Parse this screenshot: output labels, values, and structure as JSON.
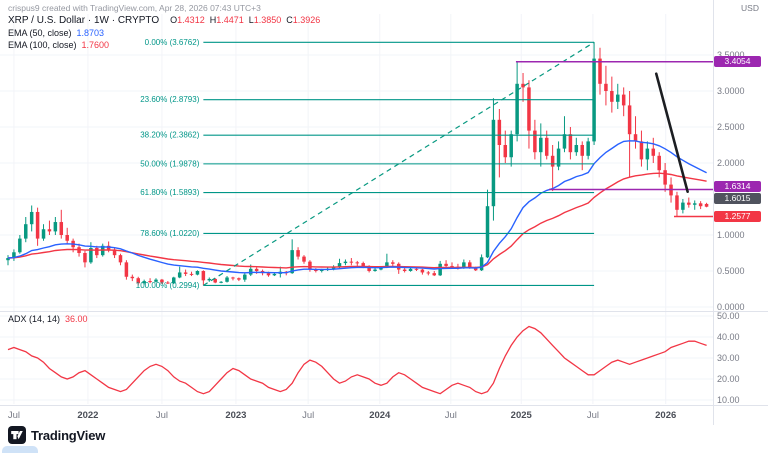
{
  "attribution": "crispus9 created with TradingView.com, Apr 28, 2026 07:43 UTC+3",
  "currency": "USD",
  "header": {
    "symbol_title": "XRP / U.S. Dollar · 1W · CRYPTO",
    "ohlc": [
      {
        "k": "O",
        "v": "1.4312"
      },
      {
        "k": "H",
        "v": "1.4471"
      },
      {
        "k": "L",
        "v": "1.3850"
      },
      {
        "k": "C",
        "v": "1.3926"
      }
    ]
  },
  "indicators": [
    {
      "label": "EMA (50, close)",
      "value": "1.8703",
      "color": "#2962ff",
      "render_period": 25
    },
    {
      "label": "EMA (100, close)",
      "value": "1.7600",
      "color": "#f23645",
      "render_period": 50
    }
  ],
  "adx_legend": {
    "label": "ADX (14, 14)",
    "value": "36.00",
    "color": "#f23645"
  },
  "axes": {
    "price_ticks": [
      {
        "label": "3.5000",
        "value": 3.5
      },
      {
        "label": "3.0000",
        "value": 3.0
      },
      {
        "label": "2.5000",
        "value": 2.5
      },
      {
        "label": "2.0000",
        "value": 2.0
      },
      {
        "label": "1.5000",
        "value": 1.5
      },
      {
        "label": "1.0000",
        "value": 1.0
      },
      {
        "label": "0.5000",
        "value": 0.5
      },
      {
        "label": "0.0000",
        "value": 0.0
      }
    ],
    "adx_ticks": [
      {
        "label": "50.00",
        "value": 50
      },
      {
        "label": "40.00",
        "value": 40
      },
      {
        "label": "30.00",
        "value": 30
      },
      {
        "label": "20.00",
        "value": 20
      },
      {
        "label": "10.00",
        "value": 10
      }
    ],
    "time_ticks": [
      {
        "label": "Jul",
        "index": 1.0,
        "major": false
      },
      {
        "label": "2022",
        "index": 13.5,
        "major": true
      },
      {
        "label": "Jul",
        "index": 26.0,
        "major": false
      },
      {
        "label": "2023",
        "index": 38.5,
        "major": true
      },
      {
        "label": "Jul",
        "index": 50.7,
        "major": false
      },
      {
        "label": "2024",
        "index": 62.8,
        "major": true
      },
      {
        "label": "Jul",
        "index": 74.8,
        "major": false
      },
      {
        "label": "2025",
        "index": 86.7,
        "major": true
      },
      {
        "label": "Jul",
        "index": 98.8,
        "major": false
      },
      {
        "label": "2026",
        "index": 111.1,
        "major": true
      }
    ]
  },
  "price_labels": [
    {
      "text": "3.4054",
      "price": 3.4054,
      "bg": "#9c27b0",
      "dy": 0
    },
    {
      "text": "1.6314",
      "price": 1.6314,
      "bg": "#9c27b0",
      "dy": -3
    },
    {
      "text": "1.6015",
      "price": 1.6015,
      "bg": "#50535e",
      "dy": 7
    },
    {
      "text": "1.2577",
      "price": 1.2577,
      "bg": "#f23645",
      "dy": 0
    }
  ],
  "fib": {
    "color": "#009688",
    "start_index": 33,
    "end_index": 99,
    "levels": [
      {
        "label": "0.00% (3.6762)",
        "price": 3.6762
      },
      {
        "label": "23.60% (2.8793)",
        "price": 2.8793
      },
      {
        "label": "38.20% (2.3862)",
        "price": 2.3862
      },
      {
        "label": "50.00% (1.9878)",
        "price": 1.9878
      },
      {
        "label": "61.80% (1.5893)",
        "price": 1.5893
      },
      {
        "label": "78.60% (1.0220)",
        "price": 1.022
      },
      {
        "label": "100.00% (0.2994)",
        "price": 0.2994
      }
    ]
  },
  "drawings": {
    "fib_trend": {
      "from": {
        "index": 33,
        "price": 0.2994
      },
      "to": {
        "index": 99,
        "price": 3.6762
      },
      "color": "#089981"
    },
    "black_trendline": {
      "from": {
        "index": 109.5,
        "price": 3.24
      },
      "to": {
        "index": 114.8,
        "price": 1.6015
      },
      "color": "#1c1e22"
    },
    "hlines": [
      {
        "price": 3.4054,
        "start_index": 85.8,
        "color": "#9c27b0"
      },
      {
        "price": 1.6314,
        "start_index": 91.4,
        "color": "#9c27b0"
      },
      {
        "price": 1.2577,
        "start_index": 112.5,
        "color": "#f23645"
      }
    ]
  },
  "colors": {
    "up": "#089981",
    "down": "#f23645",
    "ema_fast": "#2962ff",
    "ema_slow": "#f23645",
    "adx": "#f23645",
    "grid": "#f2f4f8",
    "axis_text": "#787b86",
    "separator": "#e0e3eb"
  },
  "logo": {
    "text": "TradingView"
  },
  "chart_data": [
    {
      "type": "candlestick",
      "title": "XRP / U.S. Dollar, 1W, CRYPTO",
      "ylabel": "USD",
      "ylim": [
        0,
        3.85
      ],
      "x_range": [
        "Jul 2021",
        "Apr 2026"
      ],
      "x_tick_labels": [
        "Jul",
        "2022",
        "Jul",
        "2023",
        "Jul",
        "2024",
        "Jul",
        "2025",
        "Jul",
        "2026"
      ],
      "last_ohlc": {
        "open": 1.4312,
        "high": 1.4471,
        "low": 1.385,
        "close": 1.3926
      },
      "overlays": [
        {
          "name": "EMA 50",
          "last": 1.8703,
          "color": "#2962ff"
        },
        {
          "name": "EMA 100",
          "last": 1.76,
          "color": "#f23645"
        }
      ],
      "fib_retracement": {
        "high": 3.6762,
        "low": 0.2994,
        "levels": [
          3.6762,
          2.8793,
          2.3862,
          1.9878,
          1.5893,
          1.022,
          0.2994
        ]
      },
      "horizontal_lines": [
        3.4054,
        1.6314,
        1.2577
      ],
      "trendline_end_price": 1.6015,
      "candles": [
        [
          0.65,
          0.72,
          0.58,
          0.68
        ],
        [
          0.68,
          0.8,
          0.64,
          0.76
        ],
        [
          0.76,
          1.0,
          0.74,
          0.95
        ],
        [
          0.95,
          1.25,
          0.9,
          1.15
        ],
        [
          1.15,
          1.41,
          1.05,
          1.32
        ],
        [
          1.32,
          1.38,
          0.85,
          0.95
        ],
        [
          0.95,
          1.15,
          0.92,
          1.08
        ],
        [
          1.08,
          1.2,
          1.0,
          1.05
        ],
        [
          1.05,
          1.25,
          1.0,
          1.18
        ],
        [
          1.18,
          1.35,
          0.95,
          1.0
        ],
        [
          1.0,
          1.1,
          0.88,
          0.92
        ],
        [
          0.92,
          0.95,
          0.76,
          0.83
        ],
        [
          0.83,
          0.88,
          0.7,
          0.75
        ],
        [
          0.75,
          0.78,
          0.55,
          0.62
        ],
        [
          0.62,
          0.9,
          0.6,
          0.82
        ],
        [
          0.82,
          0.85,
          0.68,
          0.72
        ],
        [
          0.72,
          0.88,
          0.7,
          0.85
        ],
        [
          0.85,
          0.91,
          0.76,
          0.8
        ],
        [
          0.8,
          0.82,
          0.68,
          0.72
        ],
        [
          0.72,
          0.74,
          0.58,
          0.62
        ],
        [
          0.62,
          0.65,
          0.38,
          0.42
        ],
        [
          0.42,
          0.45,
          0.36,
          0.4
        ],
        [
          0.4,
          0.42,
          0.3,
          0.33
        ],
        [
          0.33,
          0.38,
          0.31,
          0.36
        ],
        [
          0.36,
          0.4,
          0.33,
          0.35
        ],
        [
          0.35,
          0.4,
          0.34,
          0.38
        ],
        [
          0.38,
          0.39,
          0.32,
          0.34
        ],
        [
          0.34,
          0.36,
          0.32,
          0.33
        ],
        [
          0.33,
          0.42,
          0.32,
          0.41
        ],
        [
          0.41,
          0.56,
          0.4,
          0.48
        ],
        [
          0.48,
          0.52,
          0.43,
          0.46
        ],
        [
          0.46,
          0.49,
          0.43,
          0.45
        ],
        [
          0.45,
          0.51,
          0.44,
          0.5
        ],
        [
          0.5,
          0.51,
          0.3,
          0.37
        ],
        [
          0.37,
          0.41,
          0.35,
          0.39
        ],
        [
          0.39,
          0.4,
          0.33,
          0.34
        ],
        [
          0.34,
          0.36,
          0.33,
          0.35
        ],
        [
          0.35,
          0.43,
          0.34,
          0.41
        ],
        [
          0.41,
          0.42,
          0.37,
          0.4
        ],
        [
          0.4,
          0.41,
          0.36,
          0.38
        ],
        [
          0.38,
          0.48,
          0.35,
          0.45
        ],
        [
          0.45,
          0.59,
          0.43,
          0.53
        ],
        [
          0.53,
          0.55,
          0.46,
          0.5
        ],
        [
          0.5,
          0.52,
          0.44,
          0.47
        ],
        [
          0.47,
          0.49,
          0.42,
          0.44
        ],
        [
          0.44,
          0.48,
          0.43,
          0.46
        ],
        [
          0.46,
          0.56,
          0.41,
          0.49
        ],
        [
          0.49,
          0.5,
          0.44,
          0.47
        ],
        [
          0.47,
          0.94,
          0.46,
          0.79
        ],
        [
          0.79,
          0.83,
          0.66,
          0.7
        ],
        [
          0.7,
          0.72,
          0.6,
          0.63
        ],
        [
          0.63,
          0.65,
          0.49,
          0.52
        ],
        [
          0.52,
          0.54,
          0.48,
          0.5
        ],
        [
          0.5,
          0.53,
          0.48,
          0.52
        ],
        [
          0.52,
          0.55,
          0.5,
          0.53
        ],
        [
          0.53,
          0.58,
          0.51,
          0.55
        ],
        [
          0.55,
          0.67,
          0.54,
          0.61
        ],
        [
          0.61,
          0.66,
          0.58,
          0.63
        ],
        [
          0.63,
          0.68,
          0.58,
          0.62
        ],
        [
          0.62,
          0.64,
          0.57,
          0.61
        ],
        [
          0.61,
          0.63,
          0.54,
          0.57
        ],
        [
          0.57,
          0.58,
          0.48,
          0.5
        ],
        [
          0.5,
          0.55,
          0.49,
          0.52
        ],
        [
          0.52,
          0.57,
          0.51,
          0.55
        ],
        [
          0.55,
          0.74,
          0.54,
          0.62
        ],
        [
          0.62,
          0.65,
          0.56,
          0.6
        ],
        [
          0.6,
          0.62,
          0.46,
          0.52
        ],
        [
          0.52,
          0.55,
          0.48,
          0.5
        ],
        [
          0.5,
          0.56,
          0.49,
          0.53
        ],
        [
          0.53,
          0.55,
          0.5,
          0.52
        ],
        [
          0.52,
          0.53,
          0.45,
          0.48
        ],
        [
          0.48,
          0.5,
          0.44,
          0.47
        ],
        [
          0.47,
          0.5,
          0.43,
          0.44
        ],
        [
          0.44,
          0.64,
          0.43,
          0.6
        ],
        [
          0.6,
          0.65,
          0.54,
          0.57
        ],
        [
          0.57,
          0.62,
          0.53,
          0.56
        ],
        [
          0.56,
          0.6,
          0.52,
          0.54
        ],
        [
          0.54,
          0.66,
          0.53,
          0.62
        ],
        [
          0.62,
          0.65,
          0.53,
          0.55
        ],
        [
          0.55,
          0.56,
          0.5,
          0.51
        ],
        [
          0.51,
          0.73,
          0.5,
          0.69
        ],
        [
          0.69,
          1.63,
          0.68,
          1.4
        ],
        [
          1.4,
          2.9,
          1.2,
          2.6
        ],
        [
          2.6,
          2.75,
          1.8,
          2.25
        ],
        [
          2.25,
          2.45,
          2.0,
          2.08
        ],
        [
          2.08,
          2.45,
          1.95,
          2.4
        ],
        [
          2.4,
          3.4,
          2.3,
          3.1
        ],
        [
          3.1,
          3.25,
          2.85,
          3.05
        ],
        [
          3.05,
          3.15,
          2.2,
          2.45
        ],
        [
          2.45,
          2.6,
          2.05,
          2.15
        ],
        [
          2.15,
          2.55,
          1.95,
          2.35
        ],
        [
          2.35,
          2.45,
          2.05,
          2.1
        ],
        [
          2.1,
          2.25,
          1.61,
          1.95
        ],
        [
          1.95,
          2.3,
          1.9,
          2.2
        ],
        [
          2.2,
          2.65,
          2.15,
          2.4
        ],
        [
          2.4,
          2.5,
          2.05,
          2.15
        ],
        [
          2.15,
          2.35,
          2.1,
          2.25
        ],
        [
          2.25,
          2.3,
          1.9,
          2.1
        ],
        [
          2.1,
          2.35,
          2.05,
          2.3
        ],
        [
          2.3,
          3.68,
          2.25,
          3.45
        ],
        [
          3.45,
          3.6,
          2.95,
          3.1
        ],
        [
          3.1,
          3.35,
          2.8,
          3.0
        ],
        [
          3.0,
          3.2,
          2.7,
          2.85
        ],
        [
          2.85,
          3.1,
          2.75,
          2.95
        ],
        [
          2.95,
          3.05,
          2.65,
          2.8
        ],
        [
          2.8,
          3.0,
          1.8,
          2.4
        ],
        [
          2.4,
          2.65,
          2.2,
          2.3
        ],
        [
          2.3,
          2.45,
          1.95,
          2.05
        ],
        [
          2.05,
          2.3,
          1.9,
          2.2
        ],
        [
          2.2,
          2.35,
          2.0,
          2.1
        ],
        [
          2.1,
          2.15,
          1.8,
          1.9
        ],
        [
          1.9,
          2.0,
          1.6,
          1.7
        ],
        [
          1.7,
          1.8,
          1.45,
          1.55
        ],
        [
          1.55,
          1.6,
          1.26,
          1.35
        ],
        [
          1.35,
          1.5,
          1.3,
          1.45
        ],
        [
          1.45,
          1.52,
          1.38,
          1.42
        ],
        [
          1.42,
          1.48,
          1.35,
          1.44
        ],
        [
          1.44,
          1.47,
          1.36,
          1.4
        ],
        [
          1.4312,
          1.4471,
          1.385,
          1.3926
        ]
      ]
    },
    {
      "type": "line",
      "title": "ADX (14, 14)",
      "ylim": [
        5,
        52
      ],
      "last": 36.0,
      "color": "#f23645",
      "values": [
        34,
        35,
        34,
        33,
        31,
        30,
        28,
        25,
        23,
        21,
        20,
        21,
        23,
        24,
        22,
        20,
        18,
        16,
        15,
        14,
        15,
        18,
        21,
        24,
        26,
        27,
        26,
        24,
        21,
        19,
        18,
        16,
        14,
        13,
        14,
        17,
        20,
        23,
        25,
        24,
        22,
        20,
        19,
        18,
        16,
        15,
        14,
        15,
        18,
        23,
        27,
        29,
        28,
        26,
        23,
        20,
        18,
        19,
        21,
        22,
        21,
        20,
        18,
        17,
        18,
        21,
        23,
        22,
        20,
        18,
        16,
        15,
        14,
        13,
        15,
        17,
        18,
        17,
        16,
        14,
        13,
        14,
        18,
        25,
        31,
        36,
        40,
        43,
        45,
        44,
        42,
        39,
        36,
        33,
        30,
        28,
        26,
        24,
        22,
        22,
        24,
        26,
        28,
        29,
        28,
        27,
        28,
        29,
        30,
        31,
        32,
        33,
        35,
        36,
        37,
        38,
        38,
        37,
        36
      ]
    }
  ]
}
